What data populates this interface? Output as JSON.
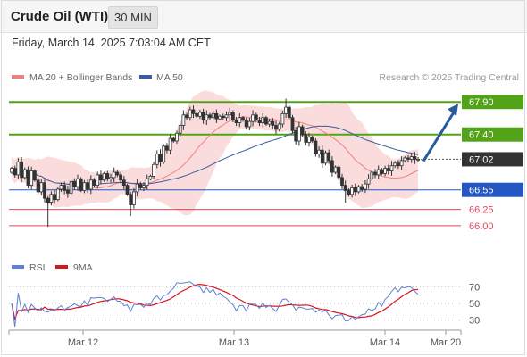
{
  "header": {
    "instrument": "Crude Oil (WTI)",
    "timeframe": "30 MIN",
    "datetime": "Friday, March 14, 2025 7:03:04 AM CET"
  },
  "colors": {
    "bollinger": "#f08080",
    "ma50": "#3a5e9c",
    "resistance": "#53a318",
    "pivot": "#2457c5",
    "support": "#e0475a",
    "last": "#333333",
    "rsi": "#5b80d6",
    "rsi_ma": "#d8151e",
    "arrow": "#2a5a9e"
  },
  "chart_data": [
    {
      "type": "candlestick",
      "legend": [
        {
          "name": "MA 20 + Bollinger Bands",
          "color": "#f08080"
        },
        {
          "name": "MA 50",
          "color": "#3a5e9c"
        }
      ],
      "credit": "Research © 2025 Trading Central",
      "x_ticks": [
        "Mar 12",
        "Mar 13",
        "Mar 14",
        "Mar 20"
      ],
      "ylim": [
        65.6,
        68.15
      ],
      "levels": [
        {
          "value": 67.9,
          "label": "67.90",
          "kind": "resistance"
        },
        {
          "value": 67.4,
          "label": "67.40",
          "kind": "resistance"
        },
        {
          "value": 67.02,
          "label": "67.02",
          "kind": "last"
        },
        {
          "value": 66.55,
          "label": "66.55",
          "kind": "pivot"
        },
        {
          "value": 66.25,
          "label": "66.25",
          "kind": "support"
        },
        {
          "value": 66.0,
          "label": "66.00",
          "kind": "support"
        }
      ],
      "closes": [
        66.88,
        66.78,
        66.98,
        66.74,
        66.86,
        66.62,
        66.84,
        66.7,
        66.52,
        66.66,
        66.42,
        66.36,
        66.48,
        66.4,
        66.56,
        66.62,
        66.54,
        66.5,
        66.68,
        66.6,
        66.72,
        66.54,
        66.66,
        66.56,
        66.7,
        66.62,
        66.78,
        66.7,
        66.8,
        66.72,
        66.74,
        66.82,
        66.78,
        66.7,
        66.62,
        66.48,
        66.32,
        66.52,
        66.64,
        66.58,
        66.62,
        66.72,
        66.76,
        66.94,
        67.1,
        66.98,
        67.22,
        67.16,
        67.34,
        67.3,
        67.42,
        67.54,
        67.7,
        67.66,
        67.78,
        67.72,
        67.68,
        67.74,
        67.62,
        67.7,
        67.66,
        67.72,
        67.64,
        67.68,
        67.66,
        67.7,
        67.74,
        67.62,
        67.58,
        67.66,
        67.62,
        67.52,
        67.6,
        67.7,
        67.62,
        67.58,
        67.66,
        67.56,
        67.6,
        67.54,
        67.48,
        67.56,
        67.72,
        67.82,
        67.66,
        67.46,
        67.3,
        67.52,
        67.4,
        67.28,
        67.36,
        67.3,
        67.1,
        67.16,
        66.96,
        67.12,
        67.0,
        66.82,
        66.9,
        66.74,
        66.62,
        66.54,
        66.48,
        66.58,
        66.52,
        66.6,
        66.56,
        66.64,
        66.72,
        66.82,
        66.78,
        66.86,
        66.8,
        66.88,
        66.84,
        66.92,
        66.96,
        66.92,
        67.0,
        67.04,
        67.02,
        67.06,
        67.02,
        67.02
      ],
      "open_first": 66.82,
      "close_last": 67.02
    },
    {
      "type": "line",
      "series": [
        {
          "name": "RSI",
          "color": "#5b80d6"
        },
        {
          "name": "9MA",
          "color": "#d8151e"
        }
      ],
      "y_ticks": [
        70,
        50,
        30
      ],
      "ylim": [
        20,
        80
      ]
    }
  ]
}
